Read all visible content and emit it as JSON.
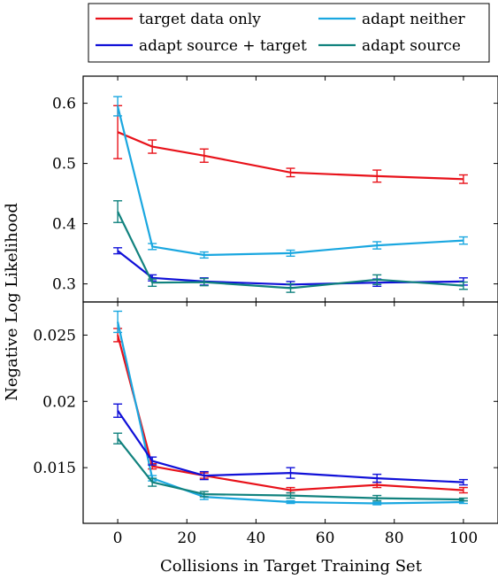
{
  "chart_data": {
    "type": "line",
    "xlabel": "Collisions in Target Training Set",
    "ylabel": "Negative Log Likelihood",
    "legend": {
      "placement": "top",
      "entries": [
        {
          "label": "target data only",
          "color": "#e8121a"
        },
        {
          "label": "adapt neither",
          "color": "#1aa7e0"
        },
        {
          "label": "adapt source + target",
          "color": "#1010d8"
        },
        {
          "label": "adapt source",
          "color": "#11827e"
        }
      ]
    },
    "x": [
      0,
      10,
      25,
      50,
      75,
      100
    ],
    "xlim": [
      -10,
      110
    ],
    "xticks": [
      0,
      20,
      40,
      60,
      80,
      100
    ],
    "panels": [
      {
        "ylim": [
          0.27,
          0.645
        ],
        "yticks": [
          0.3,
          0.4,
          0.5,
          0.6
        ],
        "ytick_labels": [
          "0.3",
          "0.4",
          "0.5",
          "0.6"
        ],
        "series": [
          {
            "key": "target",
            "color": "#e8121a",
            "values": [
              0.552,
              0.528,
              0.513,
              0.485,
              0.479,
              0.474
            ],
            "errors": [
              0.044,
              0.011,
              0.011,
              0.007,
              0.01,
              0.007
            ]
          },
          {
            "key": "neither",
            "color": "#1aa7e0",
            "values": [
              0.595,
              0.362,
              0.348,
              0.351,
              0.364,
              0.372
            ],
            "errors": [
              0.016,
              0.005,
              0.005,
              0.005,
              0.006,
              0.006
            ]
          },
          {
            "key": "source_target",
            "color": "#1010d8",
            "values": [
              0.355,
              0.31,
              0.304,
              0.299,
              0.302,
              0.304
            ],
            "errors": [
              0.005,
              0.005,
              0.006,
              0.005,
              0.006,
              0.006
            ]
          },
          {
            "key": "source",
            "color": "#11827e",
            "values": [
              0.42,
              0.302,
              0.303,
              0.293,
              0.307,
              0.297
            ],
            "errors": [
              0.018,
              0.006,
              0.006,
              0.007,
              0.008,
              0.006
            ]
          }
        ]
      },
      {
        "ylim": [
          0.0108,
          0.0275
        ],
        "yticks": [
          0.015,
          0.02,
          0.025
        ],
        "ytick_labels": [
          "0.015",
          "0.02",
          "0.025"
        ],
        "series": [
          {
            "key": "target",
            "color": "#e8121a",
            "values": [
              0.025,
              0.0151,
              0.0144,
              0.0133,
              0.0137,
              0.0133
            ],
            "errors": [
              0.0005,
              0.0002,
              0.0002,
              0.0002,
              0.0002,
              0.0002
            ]
          },
          {
            "key": "neither",
            "color": "#1aa7e0",
            "values": [
              0.026,
              0.0142,
              0.0128,
              0.0124,
              0.0123,
              0.0124
            ],
            "errors": [
              0.0008,
              0.0002,
              0.0002,
              0.0001,
              0.0001,
              0.0001
            ]
          },
          {
            "key": "source_target",
            "color": "#1010d8",
            "values": [
              0.0193,
              0.0155,
              0.0144,
              0.0146,
              0.0142,
              0.0139
            ],
            "errors": [
              0.0005,
              0.0003,
              0.0003,
              0.0004,
              0.0003,
              0.0002
            ]
          },
          {
            "key": "source",
            "color": "#11827e",
            "values": [
              0.0172,
              0.0139,
              0.013,
              0.0129,
              0.0127,
              0.0126
            ],
            "errors": [
              0.0004,
              0.0003,
              0.0002,
              0.0002,
              0.0002,
              0.0001
            ]
          }
        ]
      }
    ]
  }
}
